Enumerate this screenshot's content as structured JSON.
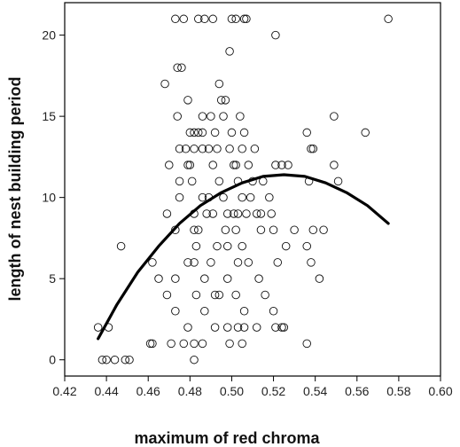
{
  "chart_data": {
    "type": "scatter",
    "title": "",
    "xlabel": "maximum of red chroma",
    "ylabel": "length of nest building period",
    "xlim": [
      0.42,
      0.6
    ],
    "ylim": [
      -1,
      22
    ],
    "x_ticks": [
      0.42,
      0.44,
      0.46,
      0.48,
      0.5,
      0.52,
      0.54,
      0.56,
      0.58,
      0.6
    ],
    "x_tick_labels": [
      "0.42",
      "0.44",
      "0.46",
      "0.48",
      "0.50",
      "0.52",
      "0.54",
      "0.56",
      "0.58",
      "0.60"
    ],
    "y_ticks": [
      0,
      5,
      10,
      15,
      20
    ],
    "y_tick_labels": [
      "0",
      "5",
      "10",
      "15",
      "20"
    ],
    "grid": false,
    "legend": "none",
    "marker": "open-circle",
    "points": [
      [
        0.473,
        21
      ],
      [
        0.477,
        21
      ],
      [
        0.484,
        21
      ],
      [
        0.487,
        21
      ],
      [
        0.491,
        21
      ],
      [
        0.5,
        21
      ],
      [
        0.502,
        21
      ],
      [
        0.506,
        21
      ],
      [
        0.507,
        21
      ],
      [
        0.575,
        21
      ],
      [
        0.521,
        20
      ],
      [
        0.499,
        19
      ],
      [
        0.474,
        18
      ],
      [
        0.476,
        18
      ],
      [
        0.468,
        17
      ],
      [
        0.494,
        17
      ],
      [
        0.479,
        16
      ],
      [
        0.495,
        16
      ],
      [
        0.497,
        16
      ],
      [
        0.474,
        15
      ],
      [
        0.486,
        15
      ],
      [
        0.49,
        15
      ],
      [
        0.496,
        15
      ],
      [
        0.504,
        15
      ],
      [
        0.549,
        15
      ],
      [
        0.48,
        14
      ],
      [
        0.482,
        14
      ],
      [
        0.484,
        14
      ],
      [
        0.486,
        14
      ],
      [
        0.492,
        14
      ],
      [
        0.5,
        14
      ],
      [
        0.506,
        14
      ],
      [
        0.536,
        14
      ],
      [
        0.564,
        14
      ],
      [
        0.475,
        13
      ],
      [
        0.478,
        13
      ],
      [
        0.482,
        13
      ],
      [
        0.486,
        13
      ],
      [
        0.489,
        13
      ],
      [
        0.493,
        13
      ],
      [
        0.499,
        13
      ],
      [
        0.505,
        13
      ],
      [
        0.511,
        13
      ],
      [
        0.538,
        13
      ],
      [
        0.539,
        13
      ],
      [
        0.47,
        12
      ],
      [
        0.479,
        12
      ],
      [
        0.48,
        12
      ],
      [
        0.491,
        12
      ],
      [
        0.501,
        12
      ],
      [
        0.502,
        12
      ],
      [
        0.508,
        12
      ],
      [
        0.521,
        12
      ],
      [
        0.524,
        12
      ],
      [
        0.527,
        12
      ],
      [
        0.549,
        12
      ],
      [
        0.475,
        11
      ],
      [
        0.481,
        11
      ],
      [
        0.494,
        11
      ],
      [
        0.503,
        11
      ],
      [
        0.51,
        11
      ],
      [
        0.515,
        11
      ],
      [
        0.537,
        11
      ],
      [
        0.551,
        11
      ],
      [
        0.475,
        10
      ],
      [
        0.486,
        10
      ],
      [
        0.489,
        10
      ],
      [
        0.496,
        10
      ],
      [
        0.505,
        10
      ],
      [
        0.509,
        10
      ],
      [
        0.518,
        10
      ],
      [
        0.469,
        9
      ],
      [
        0.482,
        9
      ],
      [
        0.488,
        9
      ],
      [
        0.491,
        9
      ],
      [
        0.498,
        9
      ],
      [
        0.501,
        9
      ],
      [
        0.503,
        9
      ],
      [
        0.507,
        9
      ],
      [
        0.512,
        9
      ],
      [
        0.514,
        9
      ],
      [
        0.519,
        9
      ],
      [
        0.473,
        8
      ],
      [
        0.482,
        8
      ],
      [
        0.484,
        8
      ],
      [
        0.497,
        8
      ],
      [
        0.502,
        8
      ],
      [
        0.514,
        8
      ],
      [
        0.52,
        8
      ],
      [
        0.53,
        8
      ],
      [
        0.539,
        8
      ],
      [
        0.544,
        8
      ],
      [
        0.447,
        7
      ],
      [
        0.483,
        7
      ],
      [
        0.493,
        7
      ],
      [
        0.498,
        7
      ],
      [
        0.505,
        7
      ],
      [
        0.526,
        7
      ],
      [
        0.536,
        7
      ],
      [
        0.462,
        6
      ],
      [
        0.479,
        6
      ],
      [
        0.482,
        6
      ],
      [
        0.49,
        6
      ],
      [
        0.503,
        6
      ],
      [
        0.508,
        6
      ],
      [
        0.522,
        6
      ],
      [
        0.538,
        6
      ],
      [
        0.465,
        5
      ],
      [
        0.473,
        5
      ],
      [
        0.487,
        5
      ],
      [
        0.498,
        5
      ],
      [
        0.513,
        5
      ],
      [
        0.542,
        5
      ],
      [
        0.469,
        4
      ],
      [
        0.483,
        4
      ],
      [
        0.492,
        4
      ],
      [
        0.494,
        4
      ],
      [
        0.502,
        4
      ],
      [
        0.516,
        4
      ],
      [
        0.473,
        3
      ],
      [
        0.487,
        3
      ],
      [
        0.506,
        3
      ],
      [
        0.52,
        3
      ],
      [
        0.436,
        2
      ],
      [
        0.441,
        2
      ],
      [
        0.479,
        2
      ],
      [
        0.492,
        2
      ],
      [
        0.498,
        2
      ],
      [
        0.503,
        2
      ],
      [
        0.506,
        2
      ],
      [
        0.512,
        2
      ],
      [
        0.521,
        2
      ],
      [
        0.524,
        2
      ],
      [
        0.525,
        2
      ],
      [
        0.461,
        1
      ],
      [
        0.462,
        1
      ],
      [
        0.471,
        1
      ],
      [
        0.477,
        1
      ],
      [
        0.482,
        1
      ],
      [
        0.486,
        1
      ],
      [
        0.499,
        1
      ],
      [
        0.505,
        1
      ],
      [
        0.536,
        1
      ],
      [
        0.438,
        0
      ],
      [
        0.44,
        0
      ],
      [
        0.444,
        0
      ],
      [
        0.449,
        0
      ],
      [
        0.451,
        0
      ],
      [
        0.482,
        0
      ]
    ],
    "fit_curve": {
      "type": "quadratic",
      "x": [
        0.436,
        0.445,
        0.455,
        0.465,
        0.475,
        0.485,
        0.495,
        0.505,
        0.515,
        0.525,
        0.535,
        0.545,
        0.555,
        0.565,
        0.575
      ],
      "y": [
        1.3,
        3.4,
        5.4,
        7.0,
        8.4,
        9.5,
        10.3,
        10.9,
        11.3,
        11.4,
        11.3,
        10.9,
        10.3,
        9.5,
        8.4
      ]
    }
  }
}
